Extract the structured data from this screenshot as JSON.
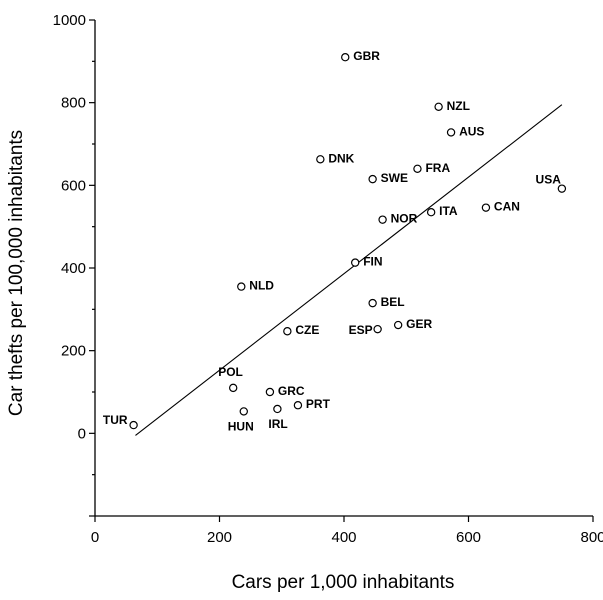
{
  "chart_data": {
    "type": "scatter",
    "xlabel": "Cars per 1,000 inhabitants",
    "ylabel": "Car thefts per 100,000 inhabitants",
    "xlim": [
      0,
      800
    ],
    "ylim": [
      -200,
      1000
    ],
    "xticks": [
      0,
      200,
      400,
      600,
      800
    ],
    "yticks": [
      0,
      200,
      400,
      600,
      800,
      1000
    ],
    "grid": false,
    "points": [
      {
        "label": "GBR",
        "x": 402,
        "y": 910
      },
      {
        "label": "NZL",
        "x": 552,
        "y": 790
      },
      {
        "label": "AUS",
        "x": 572,
        "y": 728
      },
      {
        "label": "DNK",
        "x": 362,
        "y": 663
      },
      {
        "label": "FRA",
        "x": 518,
        "y": 640
      },
      {
        "label": "SWE",
        "x": 446,
        "y": 615
      },
      {
        "label": "USA",
        "x": 750,
        "y": 592
      },
      {
        "label": "CAN",
        "x": 628,
        "y": 546
      },
      {
        "label": "NOR",
        "x": 462,
        "y": 517
      },
      {
        "label": "ITA",
        "x": 540,
        "y": 535
      },
      {
        "label": "FIN",
        "x": 418,
        "y": 413
      },
      {
        "label": "NLD",
        "x": 235,
        "y": 355
      },
      {
        "label": "BEL",
        "x": 446,
        "y": 315
      },
      {
        "label": "ESP",
        "x": 454,
        "y": 252
      },
      {
        "label": "GER",
        "x": 487,
        "y": 262
      },
      {
        "label": "CZE",
        "x": 309,
        "y": 247
      },
      {
        "label": "POL",
        "x": 222,
        "y": 110
      },
      {
        "label": "GRC",
        "x": 281,
        "y": 100
      },
      {
        "label": "PRT",
        "x": 326,
        "y": 68
      },
      {
        "label": "IRL",
        "x": 293,
        "y": 59
      },
      {
        "label": "HUN",
        "x": 239,
        "y": 53
      },
      {
        "label": "TUR",
        "x": 62,
        "y": 20
      }
    ],
    "fit_line": {
      "x": [
        65,
        750
      ],
      "y": [
        -5,
        795
      ]
    }
  }
}
